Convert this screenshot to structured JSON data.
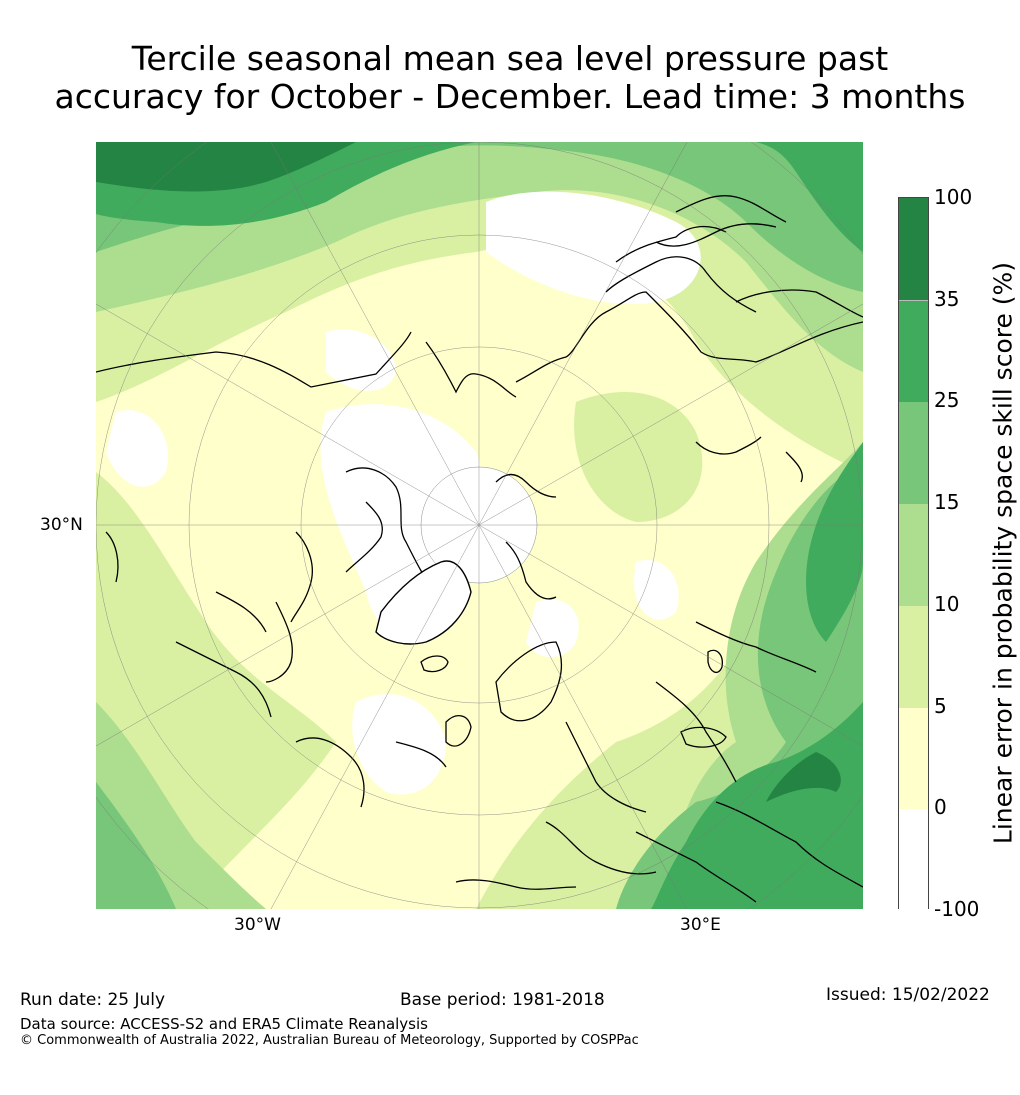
{
  "title": {
    "line1": "Tercile seasonal mean sea level pressure past",
    "line2": "accuracy for October - December. Lead time: 3 months"
  },
  "map": {
    "projection": "north-polar-stereographic",
    "lat_label": "30°N",
    "lon_labels": {
      "left": "30°W",
      "right": "30°E"
    }
  },
  "colorbar": {
    "title": "Linear error in probability space skill score (%)",
    "ticks": [
      "100",
      "35",
      "25",
      "15",
      "10",
      "5",
      "0",
      "-100"
    ],
    "bins": [
      {
        "range": "-100 to 0",
        "color": "#ffffff"
      },
      {
        "range": "0 to 5",
        "color": "#ffffcc"
      },
      {
        "range": "5 to 10",
        "color": "#d9f0a3"
      },
      {
        "range": "10 to 15",
        "color": "#addd8e"
      },
      {
        "range": "15 to 25",
        "color": "#78c679"
      },
      {
        "range": "25 to 35",
        "color": "#41ab5d"
      },
      {
        "range": "35 to 100",
        "color": "#238443"
      }
    ]
  },
  "footer": {
    "run_date": "Run date: 25 July",
    "base_period": "Base period: 1981-2018",
    "issued": "Issued: 15/02/2022",
    "data_source": "Data source: ACCESS-S2 and ERA5 Climate Reanalysis",
    "copyright": "© Commonwealth of Australia 2022, Australian Bureau of Meteorology, Supported by COSPPac"
  }
}
